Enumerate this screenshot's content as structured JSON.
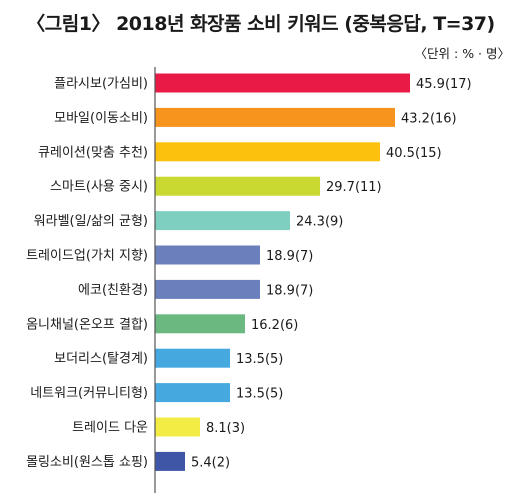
{
  "chart_data": {
    "type": "bar",
    "orientation": "horizontal",
    "title": "〈그림1〉 2018년 화장품 소비 키워드 (중복응답, T=37)",
    "unit_label": "〈단위 : % · 명〉",
    "categories": [
      "플라시보(가심비)",
      "모바일(이동소비)",
      "큐레이션(맞춤 추천)",
      "스마트(사용 중시)",
      "워라벨(일/삶의 균형)",
      "트레이드업(가치 지향)",
      "에코(친환경)",
      "옴니채널(온오프 결합)",
      "보더리스(탈경계)",
      "네트워크(커뮤니티형)",
      "트레이드 다운",
      "몰링소비(원스톱 쇼핑)"
    ],
    "values": [
      45.9,
      43.2,
      40.5,
      29.7,
      24.3,
      18.9,
      18.9,
      16.2,
      13.5,
      13.5,
      8.1,
      5.4
    ],
    "value_labels": [
      "45.9(17)",
      "43.2(16)",
      "40.5(15)",
      "29.7(11)",
      "24.3(9)",
      "18.9(7)",
      "18.9(7)",
      "16.2(6)",
      "13.5(5)",
      "13.5(5)",
      "8.1(3)",
      "5.4(2)"
    ],
    "colors": [
      "#ea1a46",
      "#f7941d",
      "#fcc10c",
      "#cad931",
      "#7fcfc0",
      "#6b7fbd",
      "#6b7fbd",
      "#6bb981",
      "#45a9e0",
      "#45a9e0",
      "#f2ec44",
      "#3f55a5"
    ],
    "xlim": [
      0,
      50
    ],
    "grid": false
  }
}
